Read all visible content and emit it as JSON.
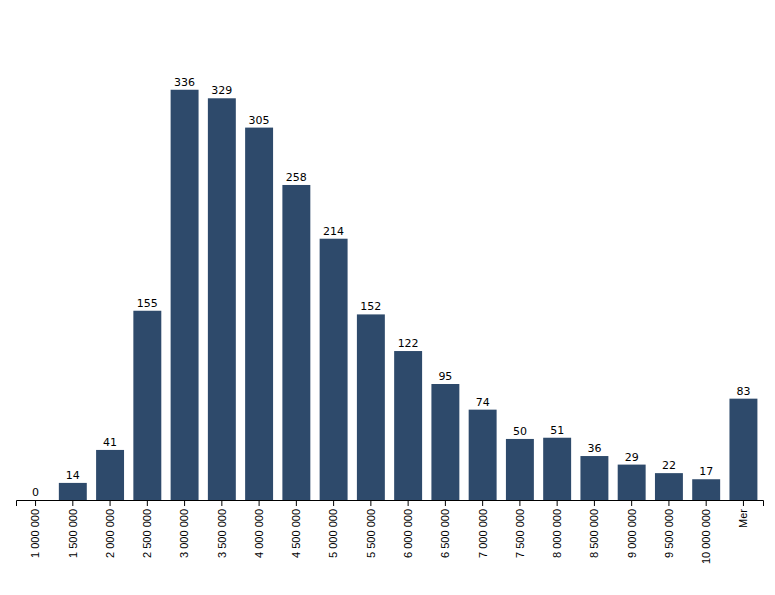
{
  "chart_data": {
    "type": "bar",
    "categories": [
      "1 000 000",
      "1 500 000",
      "2 000 000",
      "2 500 000",
      "3 000 000",
      "3 500 000",
      "4 000 000",
      "4 500 000",
      "5 000 000",
      "5 500 000",
      "6 000 000",
      "6 500 000",
      "7 000 000",
      "7 500 000",
      "8 000 000",
      "8 500 000",
      "9 000 000",
      "9 500 000",
      "10 000 000",
      "Mer"
    ],
    "values": [
      0,
      14,
      41,
      155,
      336,
      329,
      305,
      258,
      214,
      152,
      122,
      95,
      74,
      50,
      51,
      36,
      29,
      22,
      17,
      83
    ],
    "color": "#2E4A6B",
    "ylim": [
      0,
      393.12
    ],
    "data_labels": true,
    "tick_labels": "x",
    "grid": false
  }
}
